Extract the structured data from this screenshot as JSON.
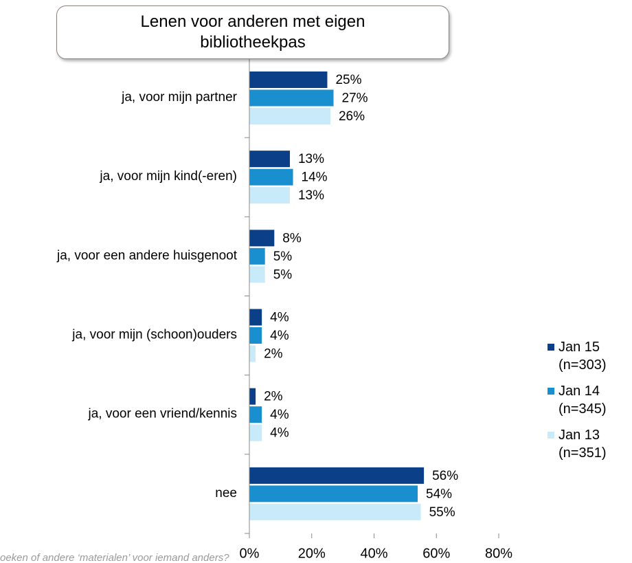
{
  "chart_data": {
    "type": "bar",
    "orientation": "horizontal",
    "title": "Lenen voor anderen met eigen bibliotheekpas",
    "footnote": "oeken of andere ‘materialen’ voor iemand anders?",
    "categories": [
      "ja, voor mijn partner",
      "ja, voor mijn kind(-eren)",
      "ja, voor een andere huisgenoot",
      "ja, voor mijn (schoon)ouders",
      "ja, voor een vriend/kennis",
      "nee"
    ],
    "series": [
      {
        "name": "Jan 15 (n=303)",
        "color": "#0b3f87",
        "values": [
          25,
          13,
          8,
          4,
          2,
          56
        ],
        "value_labels": [
          "25%",
          "13%",
          "8%",
          "4%",
          "2%",
          "56%"
        ]
      },
      {
        "name": "Jan 14 (n=345)",
        "color": "#1a8fd0",
        "values": [
          27,
          14,
          5,
          4,
          4,
          54
        ],
        "value_labels": [
          "27%",
          "14%",
          "5%",
          "4%",
          "4%",
          "54%"
        ]
      },
      {
        "name": "Jan 13 (n=351)",
        "color": "#c8eaf9",
        "values": [
          26,
          13,
          5,
          2,
          4,
          55
        ],
        "value_labels": [
          "26%",
          "13%",
          "5%",
          "2%",
          "4%",
          "55%"
        ]
      }
    ],
    "xlim": [
      0,
      80
    ],
    "xticks": [
      {
        "value": 0,
        "label": "0%"
      },
      {
        "value": 20,
        "label": "20%"
      },
      {
        "value": 40,
        "label": "40%"
      },
      {
        "value": 60,
        "label": "60%"
      },
      {
        "value": 80,
        "label": "80%"
      }
    ],
    "legend": "right"
  }
}
